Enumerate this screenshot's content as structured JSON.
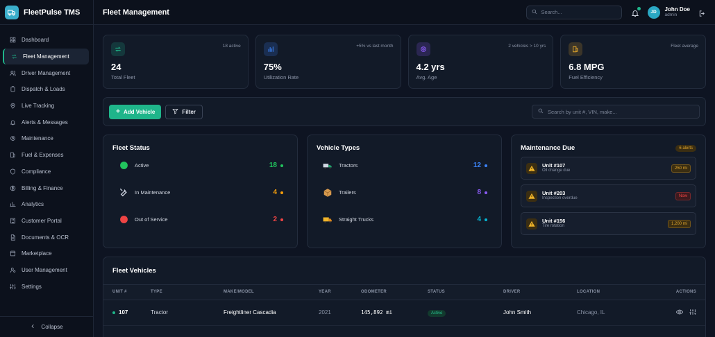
{
  "brand": {
    "name": "FleetPulse TMS"
  },
  "sidebar": {
    "items": [
      {
        "label": "Dashboard",
        "icon": "grid-icon"
      },
      {
        "label": "Fleet Management",
        "icon": "swap-icon",
        "active": true
      },
      {
        "label": "Driver Management",
        "icon": "users-icon"
      },
      {
        "label": "Dispatch & Loads",
        "icon": "clipboard-icon"
      },
      {
        "label": "Live Tracking",
        "icon": "map-pin-icon"
      },
      {
        "label": "Alerts & Messages",
        "icon": "bell-icon"
      },
      {
        "label": "Maintenance",
        "icon": "gear-icon"
      },
      {
        "label": "Fuel & Expenses",
        "icon": "fuel-icon"
      },
      {
        "label": "Compliance",
        "icon": "shield-icon"
      },
      {
        "label": "Billing & Finance",
        "icon": "dollar-icon"
      },
      {
        "label": "Analytics",
        "icon": "bar-chart-icon"
      },
      {
        "label": "Customer Portal",
        "icon": "building-icon"
      },
      {
        "label": "Documents & OCR",
        "icon": "document-icon"
      },
      {
        "label": "Marketplace",
        "icon": "store-icon"
      },
      {
        "label": "User Management",
        "icon": "user-cog-icon"
      },
      {
        "label": "Settings",
        "icon": "sliders-icon"
      }
    ],
    "collapse_label": "Collapse"
  },
  "header": {
    "title": "Fleet Management",
    "search_placeholder": "Search...",
    "user": {
      "initials": "JD",
      "name": "John Doe",
      "role": "admin"
    }
  },
  "stats": [
    {
      "value": "24",
      "label": "Total Fleet",
      "note": "18 active",
      "color": "#1fb58a"
    },
    {
      "value": "75%",
      "label": "Utilization Rate",
      "note": "+5% vs last month",
      "color": "#3b82f6"
    },
    {
      "value": "4.2 yrs",
      "label": "Avg. Age",
      "note": "2 vehicles > 10 yrs",
      "color": "#8b5cf6"
    },
    {
      "value": "6.8 MPG",
      "label": "Fuel Efficiency",
      "note": "Fleet average",
      "color": "#e0a52c"
    }
  ],
  "toolbar": {
    "add_label": "Add Vehicle",
    "filter_label": "Filter",
    "search_placeholder": "Search by unit #, VIN, make..."
  },
  "fleet_status": {
    "title": "Fleet Status",
    "rows": [
      {
        "label": "Active",
        "value": "18",
        "color": "#22c55e"
      },
      {
        "label": "In Maintenance",
        "value": "4",
        "color": "#f59e0b"
      },
      {
        "label": "Out of Service",
        "value": "2",
        "color": "#ef4444"
      }
    ]
  },
  "vehicle_types": {
    "title": "Vehicle Types",
    "rows": [
      {
        "label": "Tractors",
        "value": "12",
        "color": "#3b82f6"
      },
      {
        "label": "Trailers",
        "value": "8",
        "color": "#8b5cf6"
      },
      {
        "label": "Straight Trucks",
        "value": "4",
        "color": "#06b6d4"
      }
    ]
  },
  "maintenance": {
    "title": "Maintenance Due",
    "badge": "6 alerts",
    "items": [
      {
        "unit": "Unit #107",
        "desc": "Oil change due",
        "badge": "250 mi",
        "badge_color": "#e0a52c",
        "badge_bg": "#3b2e12"
      },
      {
        "unit": "Unit #203",
        "desc": "Inspection overdue",
        "badge": "Now",
        "badge_color": "#ef4444",
        "badge_bg": "#3d1a1e"
      },
      {
        "unit": "Unit #156",
        "desc": "Tire rotation",
        "badge": "1,200 mi",
        "badge_color": "#e0a52c",
        "badge_bg": "#3b2e12"
      }
    ]
  },
  "vehicles": {
    "title": "Fleet Vehicles",
    "columns": [
      "UNIT #",
      "TYPE",
      "MAKE/MODEL",
      "YEAR",
      "ODOMETER",
      "STATUS",
      "DRIVER",
      "LOCATION",
      "ACTIONS"
    ],
    "rows": [
      {
        "unit": "107",
        "type": "Tractor",
        "make": "Freightliner Cascadia",
        "year": "2021",
        "odometer": "145,892 mi",
        "status": "Active",
        "driver": "John Smith",
        "location": "Chicago, IL"
      }
    ]
  }
}
